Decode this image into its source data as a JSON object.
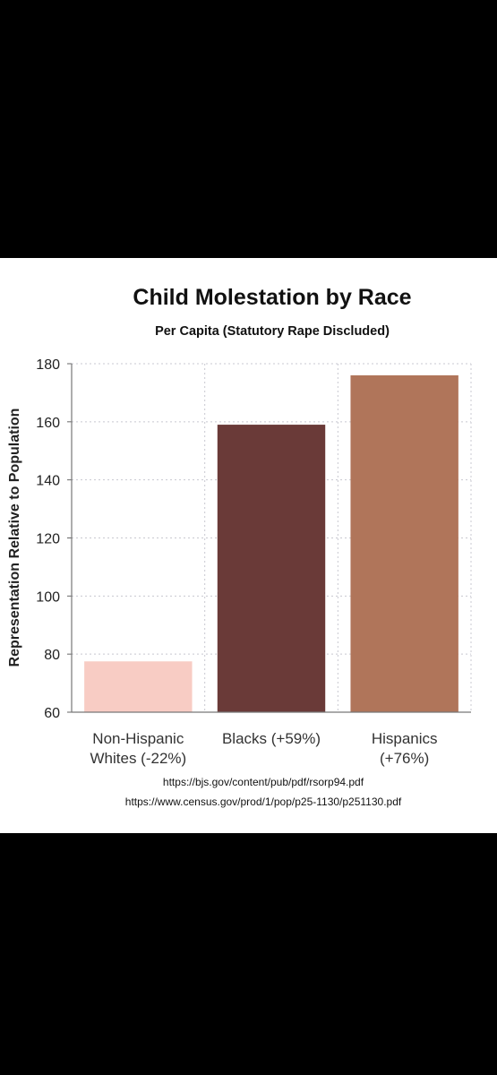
{
  "chart_data": {
    "type": "bar",
    "title": "Child Molestation by Race",
    "subtitle": "Per Capita (Statutory Rape Discluded)",
    "xlabel": "",
    "ylabel": "Representation Relative to Population",
    "ylim": [
      60,
      180
    ],
    "yticks": [
      60,
      80,
      100,
      120,
      140,
      160,
      180
    ],
    "grid": true,
    "categories": [
      [
        "Non-Hispanic",
        "Whites (-22%)"
      ],
      [
        "Blacks (+59%)"
      ],
      [
        "Hispanics",
        "(+76%)"
      ]
    ],
    "values": [
      77.5,
      159,
      176
    ],
    "colors": [
      "#f8ccc4",
      "#6a3a38",
      "#b0755a"
    ],
    "sources": [
      "https://bjs.gov/content/pub/pdf/rsorp94.pdf",
      "https://www.census.gov/prod/1/pop/p25-1130/p251130.pdf"
    ]
  }
}
